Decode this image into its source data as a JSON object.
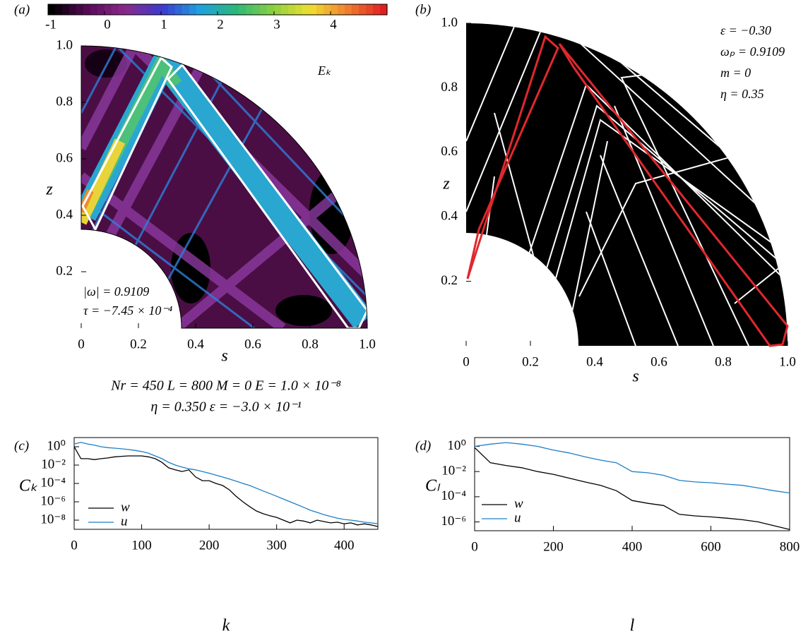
{
  "chart_data": [
    {
      "type": "heatmap",
      "panel_label": "(a)",
      "xlabel": "s",
      "ylabel": "z",
      "xlim": [
        0,
        1
      ],
      "ylim": [
        0,
        1
      ],
      "xticks": [
        0,
        0.2,
        0.4,
        0.6,
        0.8,
        {
          "value": 1,
          "label": "1.0"
        }
      ],
      "yticks": [
        0.2,
        0.4,
        0.6,
        0.8,
        {
          "value": 1,
          "label": "1.0"
        }
      ],
      "colorbar": {
        "lim": [
          -1,
          5
        ],
        "ticks": [
          -1,
          0,
          1,
          2,
          3,
          4
        ]
      },
      "annotations": [
        "Eₖ",
        "|ω| = 0.9109",
        "τ = −7.45 × 10⁻⁴"
      ],
      "footer": [
        "Nr = 450 L = 800 M = 0 E = 1.0 × 10⁻⁸",
        "η = 0.350 ε = −3.0 × 10⁻¹"
      ]
    },
    {
      "type": "raytrace",
      "panel_label": "(b)",
      "xlabel": "s",
      "ylabel": "z",
      "xlim": [
        0,
        1
      ],
      "ylim": [
        0,
        1
      ],
      "xticks": [
        0,
        0.2,
        0.4,
        0.6,
        0.8,
        {
          "value": 1,
          "label": "1.0"
        }
      ],
      "yticks": [
        0.2,
        0.4,
        0.6,
        0.8,
        {
          "value": 1,
          "label": "1.0"
        }
      ],
      "annotations": [
        "ε = −0.30",
        "ωₚ = 0.9109",
        "m = 0",
        "η = 0.35"
      ]
    },
    {
      "type": "line",
      "panel_label": "(c)",
      "xlabel": "k",
      "ylabel": "Cₖ",
      "log_y": true,
      "xlim": [
        0,
        450
      ],
      "ylim": [
        1e-09,
        10
      ],
      "xticks": [
        0,
        100,
        200,
        300,
        400
      ],
      "yticks": [
        {
          "value": 1,
          "label": "10⁰"
        },
        {
          "value": 0.01,
          "label": "10⁻²"
        },
        {
          "value": 0.0001,
          "label": "10⁻⁴"
        },
        {
          "value": 1e-06,
          "label": "10⁻⁶"
        },
        {
          "value": 1e-08,
          "label": "10⁻⁸"
        }
      ],
      "x": [
        0,
        10,
        20,
        30,
        40,
        50,
        60,
        70,
        80,
        90,
        100,
        110,
        120,
        130,
        140,
        150,
        160,
        170,
        180,
        190,
        200,
        210,
        220,
        230,
        240,
        250,
        260,
        270,
        280,
        290,
        300,
        310,
        320,
        330,
        340,
        350,
        360,
        370,
        380,
        390,
        400,
        410,
        420,
        430,
        440,
        450
      ],
      "series": [
        {
          "name": "w",
          "color": "#000000",
          "values": [
            1,
            0.05,
            0.05,
            0.04,
            0.05,
            0.06,
            0.08,
            0.09,
            0.1,
            0.1,
            0.1,
            0.08,
            0.05,
            0.02,
            0.005,
            0.003,
            0.002,
            0.003,
            0.0005,
            0.0002,
            0.0002,
            0.0001,
            6e-05,
            2e-05,
            4e-06,
            1e-06,
            3e-07,
            1e-07,
            5e-08,
            3e-08,
            2e-08,
            1e-08,
            5e-09,
            1e-08,
            8e-09,
            5e-09,
            1e-08,
            7e-09,
            5e-09,
            6e-09,
            4e-09,
            5e-09,
            3e-09,
            4e-09,
            3e-09,
            2e-09
          ]
        },
        {
          "name": "u",
          "color": "#1f7fc4",
          "values": [
            2,
            3,
            2,
            1.5,
            1,
            0.8,
            0.7,
            0.6,
            0.5,
            0.4,
            0.3,
            0.2,
            0.1,
            0.05,
            0.02,
            0.01,
            0.006,
            0.004,
            0.003,
            0.002,
            0.0013,
            0.0008,
            0.0005,
            0.0003,
            0.00018,
            0.0001,
            6e-05,
            3e-05,
            1.5e-05,
            8e-06,
            4e-06,
            2e-06,
            1e-06,
            5e-07,
            2.5e-07,
            1.2e-07,
            7e-08,
            4e-08,
            2.5e-08,
            1.6e-08,
            1.2e-08,
            1e-08,
            8e-09,
            6e-09,
            5e-09,
            4e-09
          ]
        }
      ]
    },
    {
      "type": "line",
      "panel_label": "(d)",
      "xlabel": "l",
      "ylabel": "Cₗ",
      "log_y": true,
      "xlim": [
        0,
        800
      ],
      "ylim": [
        2e-07,
        5
      ],
      "xticks": [
        0,
        200,
        400,
        600,
        800
      ],
      "yticks": [
        {
          "value": 1,
          "label": "10⁰"
        },
        {
          "value": 0.01,
          "label": "10⁻²"
        },
        {
          "value": 0.0001,
          "label": "10⁻⁴"
        },
        {
          "value": 1e-06,
          "label": "10⁻⁶"
        }
      ],
      "x": [
        0,
        40,
        80,
        120,
        160,
        200,
        240,
        280,
        320,
        360,
        400,
        440,
        480,
        520,
        560,
        600,
        640,
        680,
        720,
        760,
        800
      ],
      "series": [
        {
          "name": "w",
          "color": "#000000",
          "values": [
            0.8,
            0.05,
            0.03,
            0.02,
            0.01,
            0.006,
            0.003,
            0.0015,
            0.0008,
            0.0003,
            5e-05,
            3e-05,
            2e-05,
            4e-06,
            3e-06,
            2.5e-06,
            2e-06,
            1.5e-06,
            1e-06,
            5e-07,
            2.5e-07
          ]
        },
        {
          "name": "u",
          "color": "#1f7fc4",
          "values": [
            1,
            1.5,
            2,
            1.5,
            1,
            0.5,
            0.3,
            0.15,
            0.08,
            0.05,
            0.01,
            0.008,
            0.005,
            0.002,
            0.0015,
            0.0013,
            0.001,
            0.0008,
            0.0005,
            0.0003,
            0.0002
          ]
        }
      ]
    }
  ]
}
